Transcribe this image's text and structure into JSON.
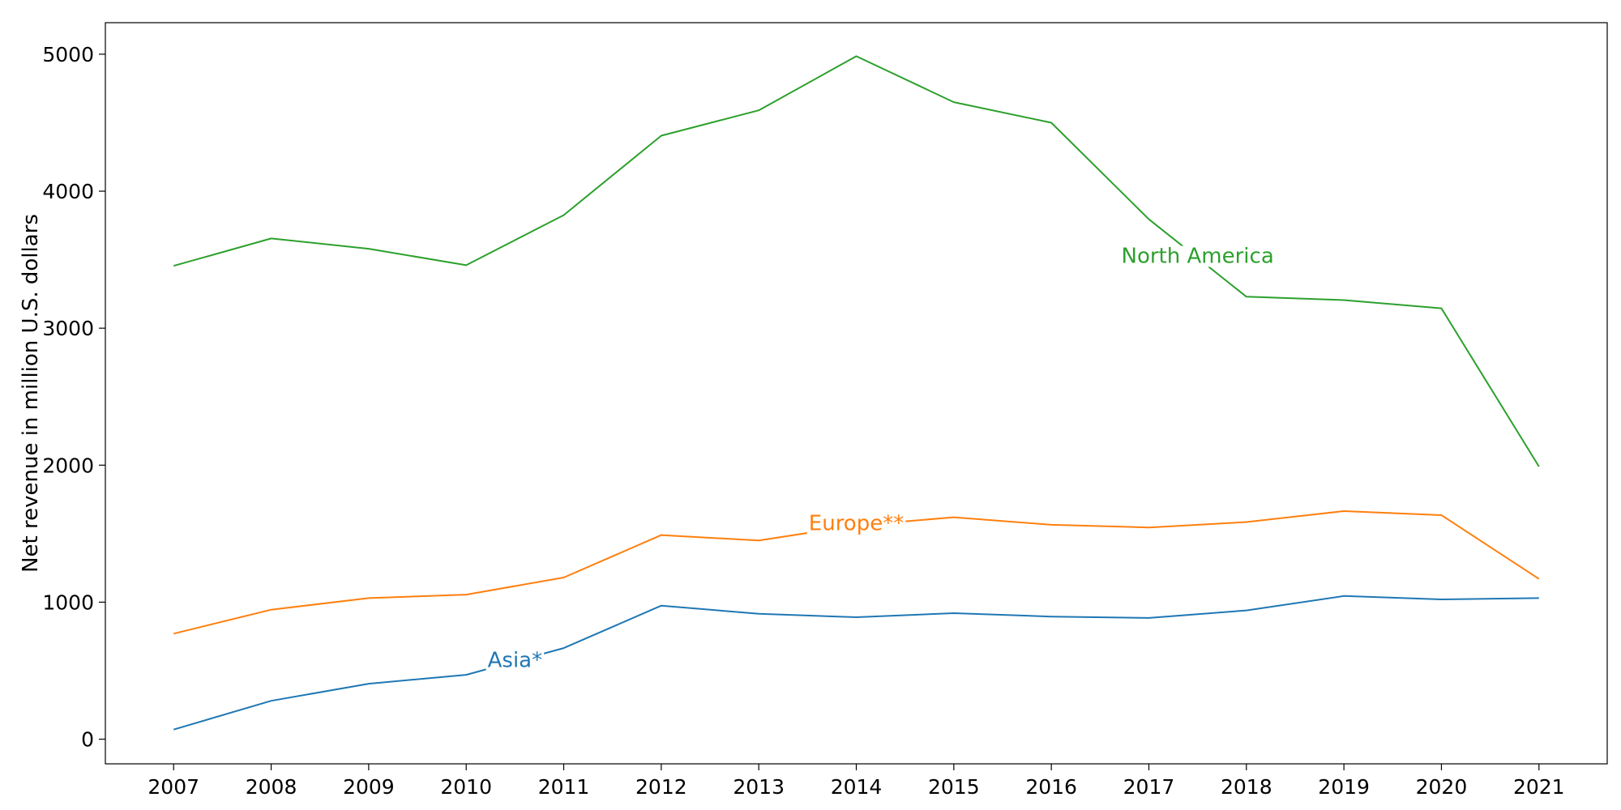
{
  "chart_data": {
    "type": "line",
    "title": "",
    "xlabel": "",
    "ylabel": "Net revenue in million U.S. dollars",
    "x": [
      "2007",
      "2008",
      "2009",
      "2010",
      "2011",
      "2012",
      "2013",
      "2014",
      "2015",
      "2016",
      "2017",
      "2018",
      "2019",
      "2020",
      "2021"
    ],
    "xlim": [
      2006.3,
      2021.7
    ],
    "ylim": [
      -180,
      5230
    ],
    "yticks": [
      0,
      1000,
      2000,
      3000,
      4000,
      5000
    ],
    "grid": false,
    "legend": "none; series are labeled inline on the lines",
    "series": [
      {
        "name": "Asia*",
        "color": "#1f77b4",
        "values": [
          70,
          280,
          405,
          470,
          665,
          975,
          915,
          890,
          920,
          895,
          885,
          940,
          1045,
          1020,
          1030
        ],
        "label_at": [
          2010.5,
          580
        ]
      },
      {
        "name": "Europe**",
        "color": "#ff7f0e",
        "values": [
          770,
          945,
          1030,
          1055,
          1180,
          1490,
          1450,
          1560,
          1620,
          1565,
          1545,
          1585,
          1665,
          1635,
          1170
        ],
        "label_at": [
          2014.0,
          1580
        ]
      },
      {
        "name": "North America",
        "color": "#2ca02c",
        "values": [
          3455,
          3655,
          3580,
          3460,
          3825,
          4405,
          4590,
          4985,
          4650,
          4500,
          3795,
          3230,
          3205,
          3145,
          1990
        ],
        "label_at": [
          2017.5,
          3530
        ]
      }
    ]
  }
}
